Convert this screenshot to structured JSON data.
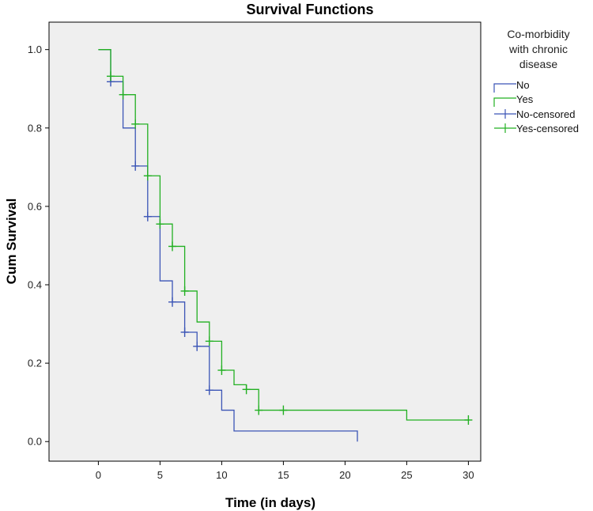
{
  "chart_data": {
    "type": "line",
    "subtype": "kaplan-meier-step",
    "title": "Survival Functions",
    "xlabel": "Time (in days)",
    "ylabel": "Cum Survival",
    "xlim": [
      -4,
      31
    ],
    "ylim": [
      -0.05,
      1.07
    ],
    "x_ticks": [
      0,
      5,
      10,
      15,
      20,
      25,
      30
    ],
    "y_ticks": [
      0.0,
      0.2,
      0.4,
      0.6,
      0.8,
      1.0
    ],
    "y_tick_labels": [
      "0.0",
      "0.2",
      "0.4",
      "0.6",
      "0.8",
      "1.0"
    ],
    "legend": {
      "title_lines": [
        "Co-morbidity",
        "with chronic",
        "disease"
      ],
      "position": "right",
      "entries": [
        "No",
        "Yes",
        "No-censored",
        "Yes-censored"
      ]
    },
    "colors": {
      "No": "#3b55b6",
      "Yes": "#22b022",
      "plot_bg": "#efefef"
    },
    "series": [
      {
        "name": "No",
        "steps": [
          [
            0,
            1.0
          ],
          [
            1,
            0.918
          ],
          [
            2,
            0.8
          ],
          [
            3,
            0.703
          ],
          [
            4,
            0.574
          ],
          [
            5,
            0.41
          ],
          [
            6,
            0.356
          ],
          [
            7,
            0.279
          ],
          [
            8,
            0.243
          ],
          [
            9,
            0.131
          ],
          [
            10,
            0.08
          ],
          [
            11,
            0.027
          ],
          [
            21,
            0.027
          ],
          [
            21,
            0.0
          ]
        ],
        "censored": [
          [
            1,
            0.918
          ],
          [
            3,
            0.703
          ],
          [
            4,
            0.574
          ],
          [
            6,
            0.356
          ],
          [
            7,
            0.279
          ],
          [
            8,
            0.243
          ],
          [
            9,
            0.131
          ]
        ]
      },
      {
        "name": "Yes",
        "steps": [
          [
            0,
            1.0
          ],
          [
            1,
            0.932
          ],
          [
            2,
            0.885
          ],
          [
            3,
            0.81
          ],
          [
            4,
            0.678
          ],
          [
            5,
            0.555
          ],
          [
            6,
            0.498
          ],
          [
            7,
            0.384
          ],
          [
            8,
            0.305
          ],
          [
            9,
            0.256
          ],
          [
            10,
            0.182
          ],
          [
            11,
            0.145
          ],
          [
            12,
            0.133
          ],
          [
            13,
            0.08
          ],
          [
            25,
            0.055
          ],
          [
            30,
            0.055
          ]
        ],
        "censored": [
          [
            1,
            0.932
          ],
          [
            2,
            0.885
          ],
          [
            3,
            0.81
          ],
          [
            4,
            0.678
          ],
          [
            5,
            0.555
          ],
          [
            6,
            0.498
          ],
          [
            7,
            0.384
          ],
          [
            9,
            0.256
          ],
          [
            10,
            0.182
          ],
          [
            12,
            0.133
          ],
          [
            13,
            0.08
          ],
          [
            15,
            0.08
          ],
          [
            30,
            0.055
          ]
        ]
      }
    ]
  }
}
